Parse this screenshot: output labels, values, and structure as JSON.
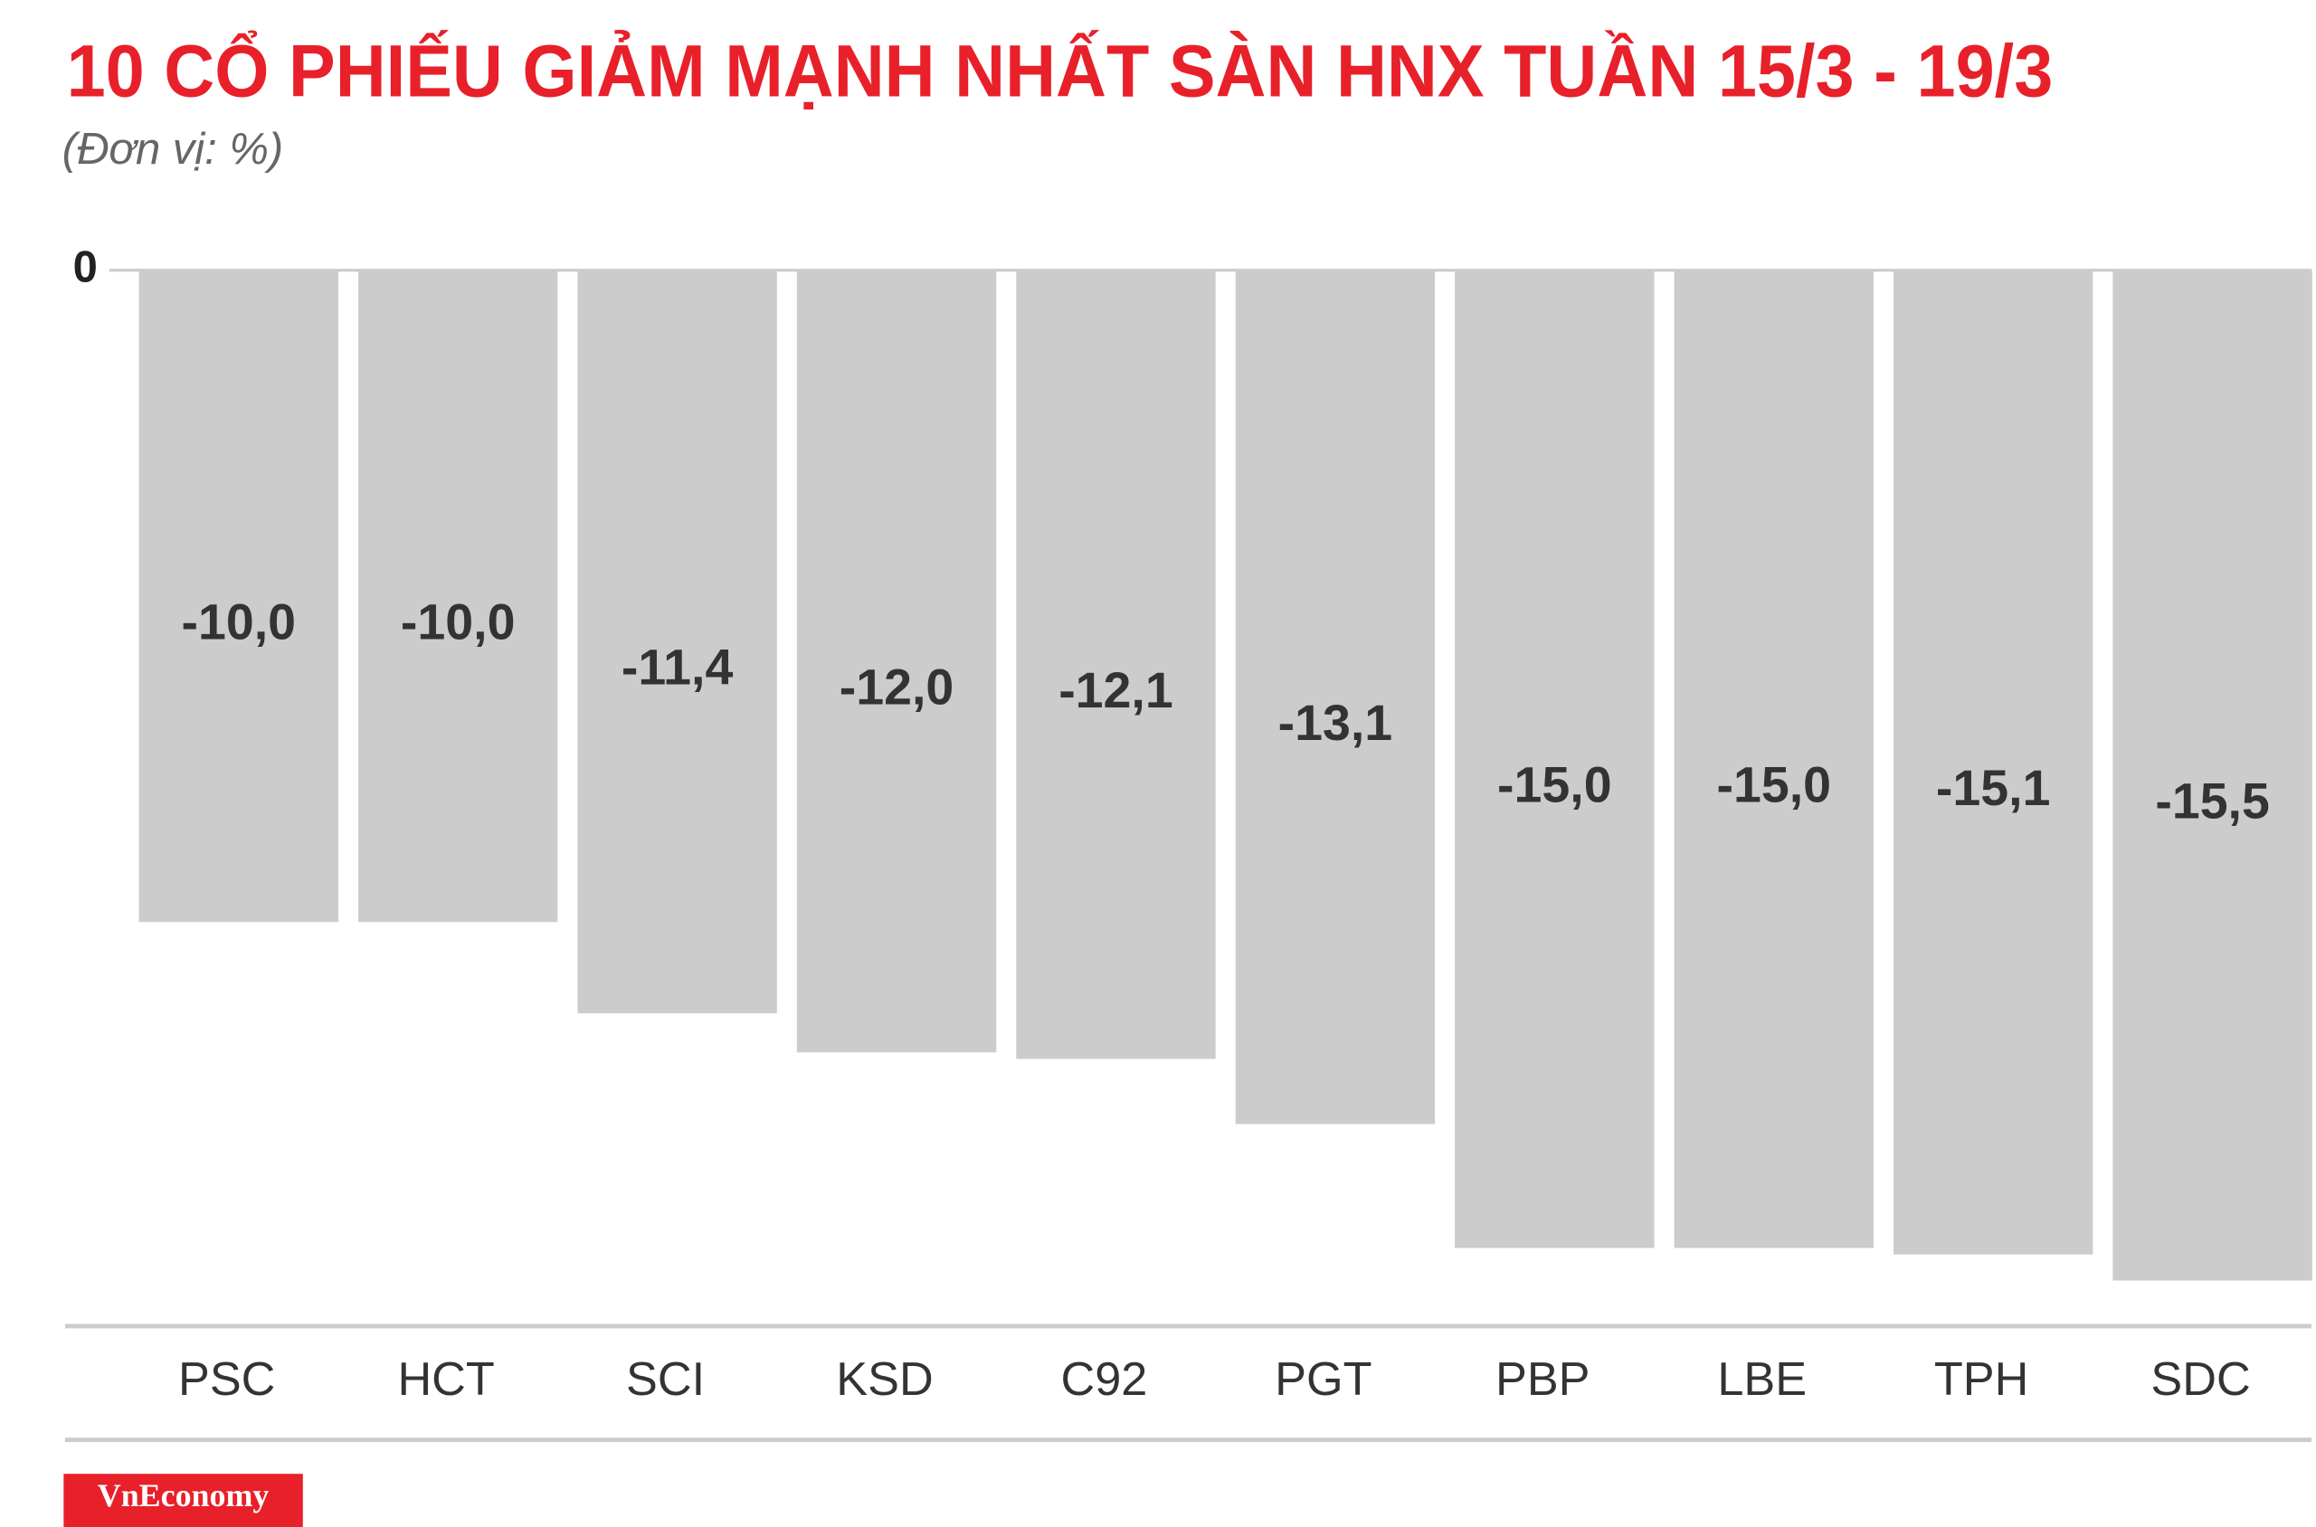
{
  "chart_data": {
    "type": "bar",
    "title": "10 CỔ PHIẾU GIẢM MẠNH NHẤT SÀN HNX TUẦN 15/3 - 19/3",
    "subtitle": "(Đơn vị: %)",
    "categories": [
      "PSC",
      "HCT",
      "SCI",
      "KSD",
      "C92",
      "PGT",
      "PBP",
      "LBE",
      "TPH",
      "SDC"
    ],
    "values": [
      -10.0,
      -10.0,
      -11.4,
      -12.0,
      -12.1,
      -13.1,
      -15.0,
      -15.0,
      -15.1,
      -15.5
    ],
    "value_labels": [
      "-10,0",
      "-10,0",
      "-11,4",
      "-12,0",
      "-12,1",
      "-13,1",
      "-15,0",
      "-15,0",
      "-15,1",
      "-15,5"
    ],
    "color": "#cccccc",
    "ylim": [
      -16.2,
      0
    ],
    "yticks": [
      0
    ],
    "grid": true,
    "source": "VnEconomy"
  }
}
